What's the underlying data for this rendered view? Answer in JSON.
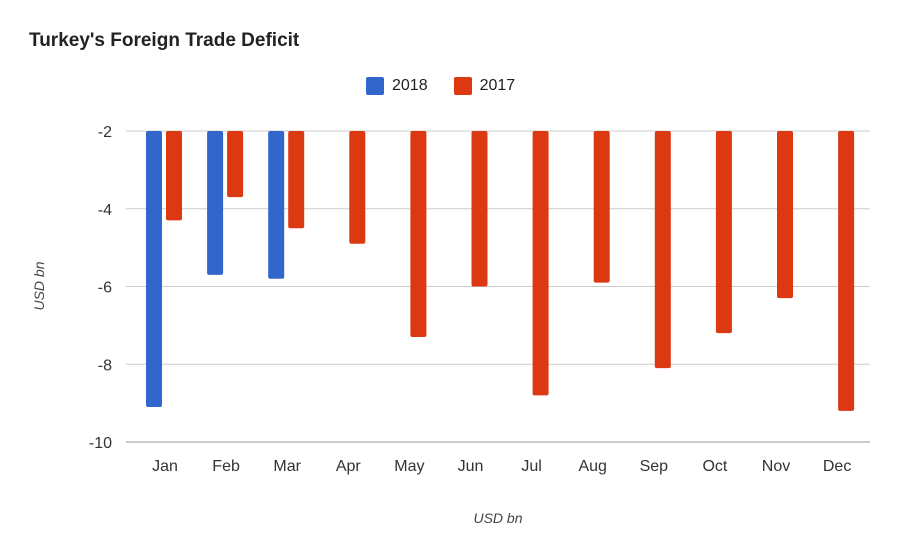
{
  "chart_data": {
    "type": "bar",
    "title": "Turkey's Foreign Trade Deficit",
    "xlabel": "USD bn",
    "ylabel": "USD bn",
    "categories": [
      "Jan",
      "Feb",
      "Mar",
      "Apr",
      "May",
      "Jun",
      "Jul",
      "Aug",
      "Sep",
      "Oct",
      "Nov",
      "Dec"
    ],
    "series": [
      {
        "name": "2018",
        "color": "#3366cc",
        "values": [
          -9.1,
          -5.7,
          -5.8,
          null,
          null,
          null,
          null,
          null,
          null,
          null,
          null,
          null
        ]
      },
      {
        "name": "2017",
        "color": "#dc3912",
        "values": [
          -4.3,
          -3.7,
          -4.5,
          -4.9,
          -7.3,
          -6.0,
          -8.8,
          -5.9,
          -8.1,
          -7.2,
          -6.3,
          -9.2
        ]
      }
    ],
    "ylim": [
      -10,
      -2
    ],
    "yticks": [
      "-2",
      "-4",
      "-6",
      "-8",
      "-10"
    ],
    "ytick_values": [
      -2,
      -4,
      -6,
      -8,
      -10
    ],
    "grid": true,
    "legend": "top"
  }
}
